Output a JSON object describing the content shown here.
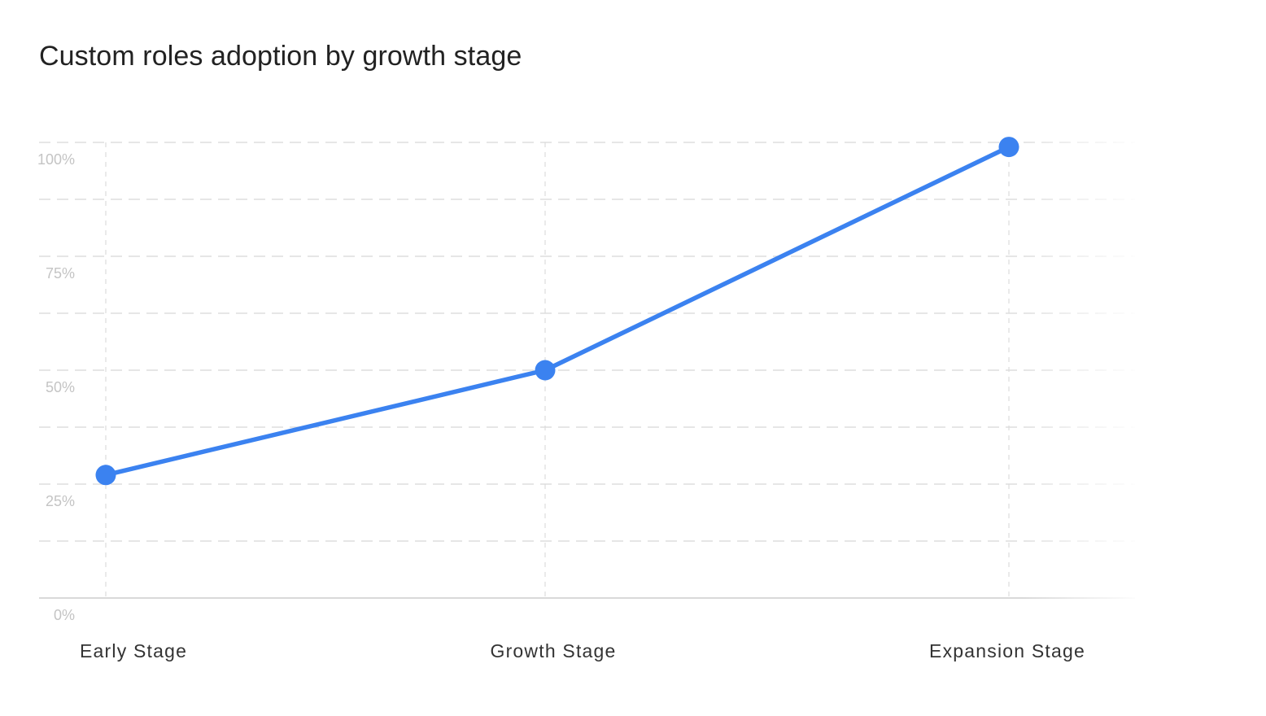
{
  "chart_data": {
    "type": "line",
    "title": "Custom roles adoption by growth stage",
    "xlabel": "",
    "ylabel": "",
    "categories": [
      "Early Stage",
      "Growth Stage",
      "Expansion Stage"
    ],
    "series": [
      {
        "values": [
          27,
          50,
          99
        ]
      }
    ],
    "ylim": [
      0,
      100
    ],
    "yticks": [
      {
        "value": 0,
        "label": "0%"
      },
      {
        "value": 25,
        "label": "25%"
      },
      {
        "value": 50,
        "label": "50%"
      },
      {
        "value": 75,
        "label": "75%"
      },
      {
        "value": 100,
        "label": "100%"
      }
    ],
    "grid": true,
    "grid_style": "dashed",
    "legend": "none",
    "colors": {
      "series": "#3b82f0",
      "grid": "#dddddd",
      "axis": "#d9d9d9",
      "title": "#222222"
    }
  }
}
